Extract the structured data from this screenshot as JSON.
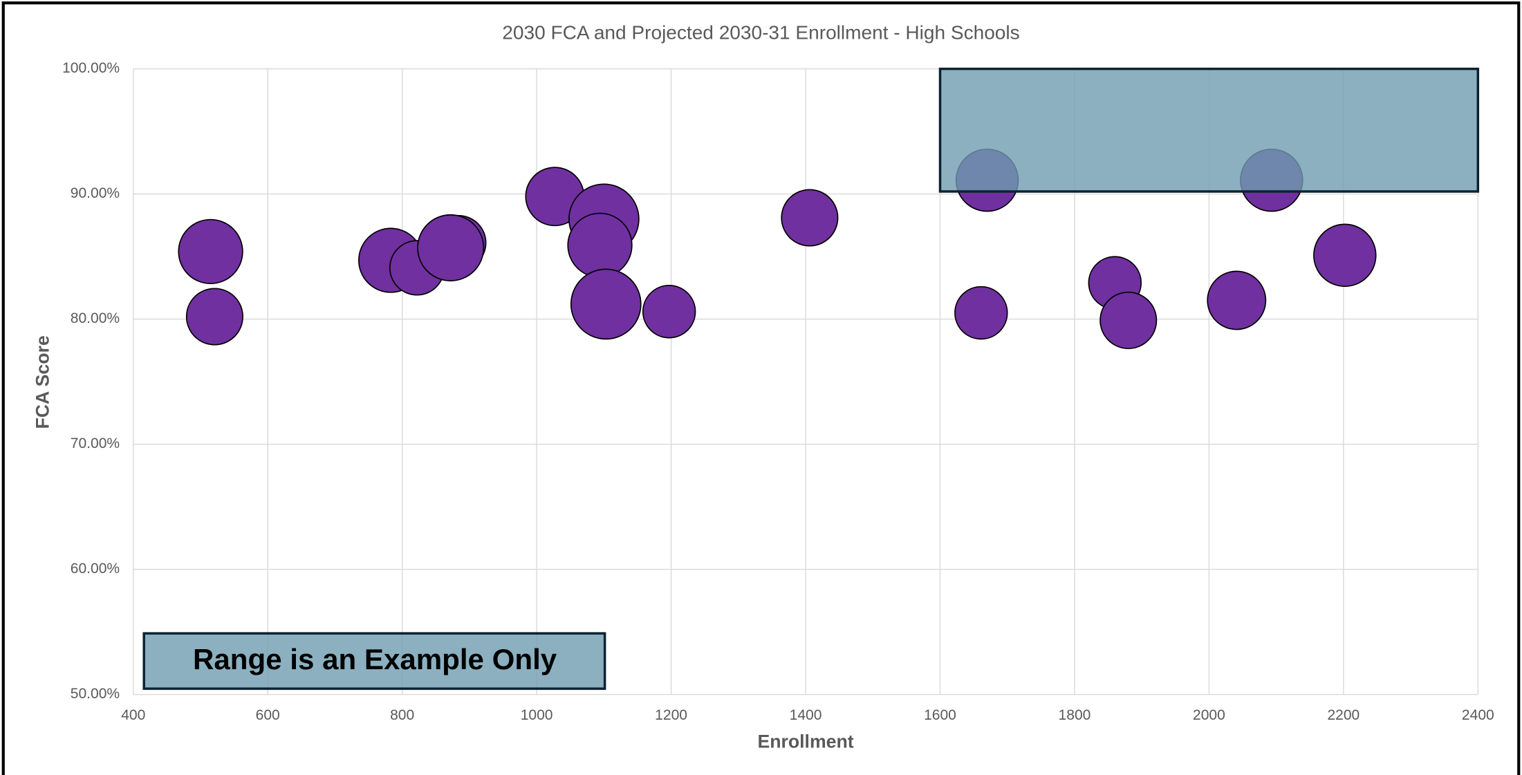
{
  "chart_data": {
    "type": "bubble",
    "title": "2030 FCA and Projected 2030-31 Enrollment - High Schools",
    "x_label": "Enrollment",
    "y_label": "FCA Score",
    "annotation": "Range is an Example Only",
    "highlight_range": {
      "x": [
        1600,
        2400
      ],
      "y": [
        90.2,
        100
      ]
    },
    "xlim": [
      400,
      2400
    ],
    "xticks": [
      400,
      600,
      800,
      1000,
      1200,
      1400,
      1600,
      1800,
      2000,
      2200,
      2400
    ],
    "ylim": [
      50,
      100
    ],
    "yticks": [
      {
        "value": 50,
        "label": "50.00%"
      },
      {
        "value": 60,
        "label": "60.00%"
      },
      {
        "value": 70,
        "label": "70.00%"
      },
      {
        "value": 80,
        "label": "80.00%"
      },
      {
        "value": 90,
        "label": "90.00%"
      },
      {
        "value": 100,
        "label": "100.00%"
      }
    ],
    "grid": true,
    "color": "#7030a0",
    "highlight_color": "#6f9cb0",
    "x": [
      515,
      521,
      783,
      822,
      884,
      872,
      1027,
      1100,
      1094,
      1103,
      1197,
      1406,
      1670,
      1661,
      1860,
      1880,
      2041,
      2093,
      2202
    ],
    "values": [
      85.4,
      80.2,
      84.7,
      84.1,
      86.1,
      85.7,
      89.8,
      88.0,
      85.9,
      81.2,
      80.6,
      88.1,
      91.1,
      80.5,
      82.9,
      79.9,
      81.5,
      91.1,
      85.1
    ],
    "sizes": [
      33,
      29,
      33,
      28,
      28,
      34,
      30,
      36,
      33,
      36,
      27,
      29,
      32,
      27,
      27,
      29,
      30,
      32,
      32
    ]
  }
}
